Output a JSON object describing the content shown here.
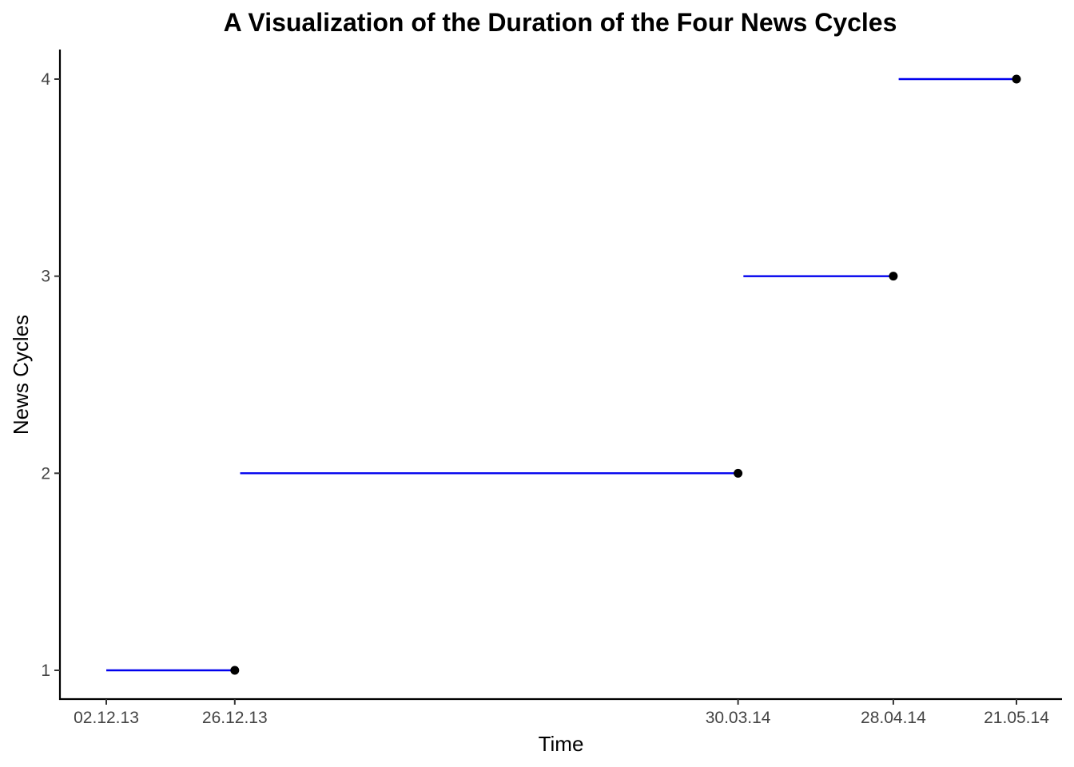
{
  "chart_data": {
    "type": "line",
    "title": "A Visualization of the Duration of the Four News Cycles",
    "xlabel": "Time",
    "ylabel": "News Cycles",
    "x_ticks": [
      "02.12.13",
      "26.12.13",
      "30.03.14",
      "28.04.14",
      "21.05.14"
    ],
    "x_tick_dates": [
      "2013-12-02",
      "2013-12-26",
      "2014-03-30",
      "2014-04-28",
      "2014-05-21"
    ],
    "y_ticks": [
      "1",
      "2",
      "3",
      "4"
    ],
    "ylim": [
      0.86,
      4.15
    ],
    "grid": false,
    "series": [
      {
        "cycle": 1,
        "start": "2013-12-02",
        "end": "2013-12-26"
      },
      {
        "cycle": 2,
        "start": "2013-12-27",
        "end": "2014-03-30"
      },
      {
        "cycle": 3,
        "start": "2014-03-31",
        "end": "2014-04-28"
      },
      {
        "cycle": 4,
        "start": "2014-04-29",
        "end": "2014-05-21"
      }
    ],
    "colors": {
      "segment": "#0000ee",
      "point": "#000000",
      "axis": "#000000"
    }
  }
}
